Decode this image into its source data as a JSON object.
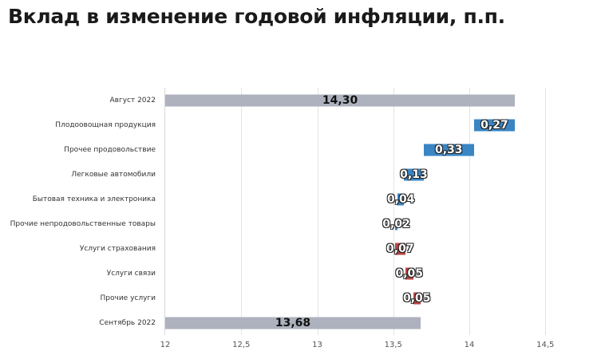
{
  "title": "Вклад в изменение годовой инфляции, п.п.",
  "colors": {
    "total": "#adb2be",
    "decrease": "#3a85c4",
    "increase": "#b84545"
  },
  "chart_data": {
    "type": "bar",
    "subtype": "waterfall-horizontal",
    "title": "Вклад в изменение годовой инфляции, п.п.",
    "xlabel": "",
    "ylabel": "",
    "xlim": [
      12,
      14.75
    ],
    "x_ticks": [
      "12",
      "12,5",
      "13",
      "13,5",
      "14",
      "14,5"
    ],
    "grid": true,
    "legend": null,
    "categories": [
      "Август 2022",
      "Плодоовощная продукция",
      "Прочее продовольствие",
      "Легковые автомобили",
      "Бытовая техника и электроника",
      "Прочие непродовольственные товары",
      "Услуги страхования",
      "Услуги связи",
      "Прочие услуги",
      "Сентябрь 2022"
    ],
    "values": [
      14.3,
      -0.27,
      -0.33,
      -0.13,
      -0.04,
      -0.02,
      0.07,
      0.05,
      0.05,
      13.68
    ],
    "labels": [
      "14,30",
      "0,27",
      "0,33",
      "0,13",
      "0,04",
      "0,02",
      "0,07",
      "0,05",
      "0,05",
      "13,68"
    ],
    "kinds": [
      "total",
      "decrease",
      "decrease",
      "decrease",
      "decrease",
      "decrease",
      "increase",
      "increase",
      "increase",
      "total"
    ]
  }
}
